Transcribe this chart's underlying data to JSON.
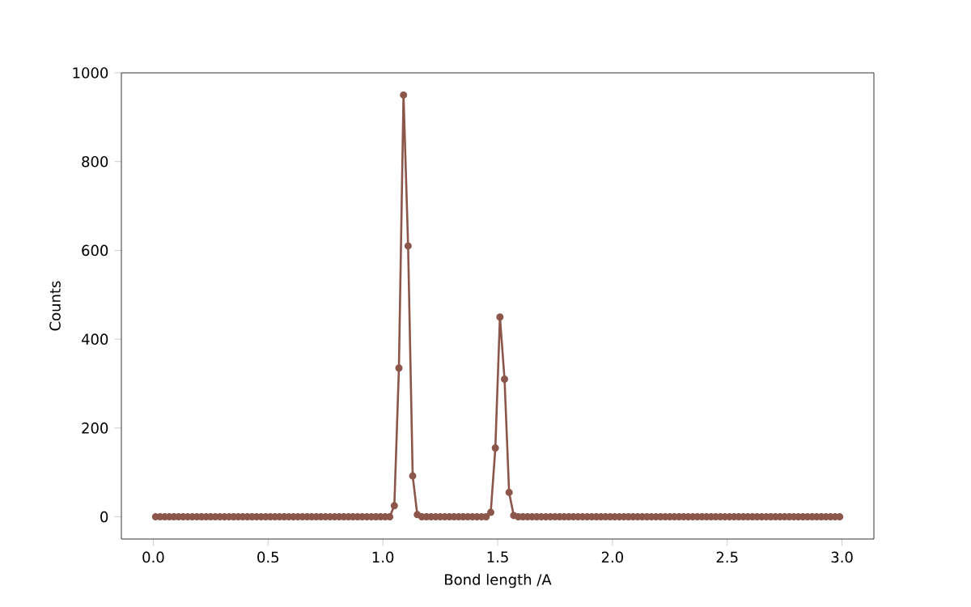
{
  "chart_data": {
    "type": "line",
    "xlabel": "Bond length /A",
    "ylabel": "Counts",
    "marker": "circle",
    "line_style": "solid",
    "grid": false,
    "xlim": [
      -0.139,
      3.139
    ],
    "ylim": [
      -50,
      1000
    ],
    "xticks": [
      {
        "value": 0,
        "label": "0.0"
      },
      0.5,
      {
        "value": 1,
        "label": "1.0"
      },
      1.5,
      {
        "value": 2,
        "label": "2.0"
      },
      2.5,
      {
        "value": 3,
        "label": "3.0"
      }
    ],
    "yticks": [
      0,
      200,
      400,
      600,
      800,
      1000
    ],
    "x": [
      0.01,
      0.03,
      0.05,
      0.07,
      0.09,
      0.11,
      0.13,
      0.15,
      0.17,
      0.19,
      0.21,
      0.23,
      0.25,
      0.27,
      0.29,
      0.31,
      0.33,
      0.35,
      0.37,
      0.39,
      0.41,
      0.43,
      0.45,
      0.47,
      0.49,
      0.51,
      0.53,
      0.55,
      0.57,
      0.59,
      0.61,
      0.63,
      0.65,
      0.67,
      0.69,
      0.71,
      0.73,
      0.75,
      0.77,
      0.79,
      0.81,
      0.83,
      0.85,
      0.87,
      0.89,
      0.91,
      0.93,
      0.95,
      0.97,
      0.99,
      1.01,
      1.03,
      1.05,
      1.07,
      1.09,
      1.11,
      1.13,
      1.15,
      1.17,
      1.19,
      1.21,
      1.23,
      1.25,
      1.27,
      1.29,
      1.31,
      1.33,
      1.35,
      1.37,
      1.39,
      1.41,
      1.43,
      1.45,
      1.47,
      1.49,
      1.51,
      1.53,
      1.55,
      1.57,
      1.59,
      1.61,
      1.63,
      1.65,
      1.67,
      1.69,
      1.71,
      1.73,
      1.75,
      1.77,
      1.79,
      1.81,
      1.83,
      1.85,
      1.87,
      1.89,
      1.91,
      1.93,
      1.95,
      1.97,
      1.99,
      2.01,
      2.03,
      2.05,
      2.07,
      2.09,
      2.11,
      2.13,
      2.15,
      2.17,
      2.19,
      2.21,
      2.23,
      2.25,
      2.27,
      2.29,
      2.31,
      2.33,
      2.35,
      2.37,
      2.39,
      2.41,
      2.43,
      2.45,
      2.47,
      2.49,
      2.51,
      2.53,
      2.55,
      2.57,
      2.59,
      2.61,
      2.63,
      2.65,
      2.67,
      2.69,
      2.71,
      2.73,
      2.75,
      2.77,
      2.79,
      2.81,
      2.83,
      2.85,
      2.87,
      2.89,
      2.91,
      2.93,
      2.95,
      2.97,
      2.99
    ],
    "series": [
      {
        "color": "#8c564b",
        "values": [
          0,
          0,
          0,
          0,
          0,
          0,
          0,
          0,
          0,
          0,
          0,
          0,
          0,
          0,
          0,
          0,
          0,
          0,
          0,
          0,
          0,
          0,
          0,
          0,
          0,
          0,
          0,
          0,
          0,
          0,
          0,
          0,
          0,
          0,
          0,
          0,
          0,
          0,
          0,
          0,
          0,
          0,
          0,
          0,
          0,
          0,
          0,
          0,
          0,
          0,
          0,
          0,
          25,
          335,
          950,
          610,
          92,
          5,
          0,
          0,
          0,
          0,
          0,
          0,
          0,
          0,
          0,
          0,
          0,
          0,
          0,
          0,
          0,
          10,
          155,
          450,
          310,
          55,
          3,
          0,
          0,
          0,
          0,
          0,
          0,
          0,
          0,
          0,
          0,
          0,
          0,
          0,
          0,
          0,
          0,
          0,
          0,
          0,
          0,
          0,
          0,
          0,
          0,
          0,
          0,
          0,
          0,
          0,
          0,
          0,
          0,
          0,
          0,
          0,
          0,
          0,
          0,
          0,
          0,
          0,
          0,
          0,
          0,
          0,
          0,
          0,
          0,
          0,
          0,
          0,
          0,
          0,
          0,
          0,
          0,
          0,
          0,
          0,
          0,
          0,
          0,
          0,
          0,
          0,
          0,
          0,
          0,
          0,
          0,
          0
        ]
      }
    ]
  }
}
